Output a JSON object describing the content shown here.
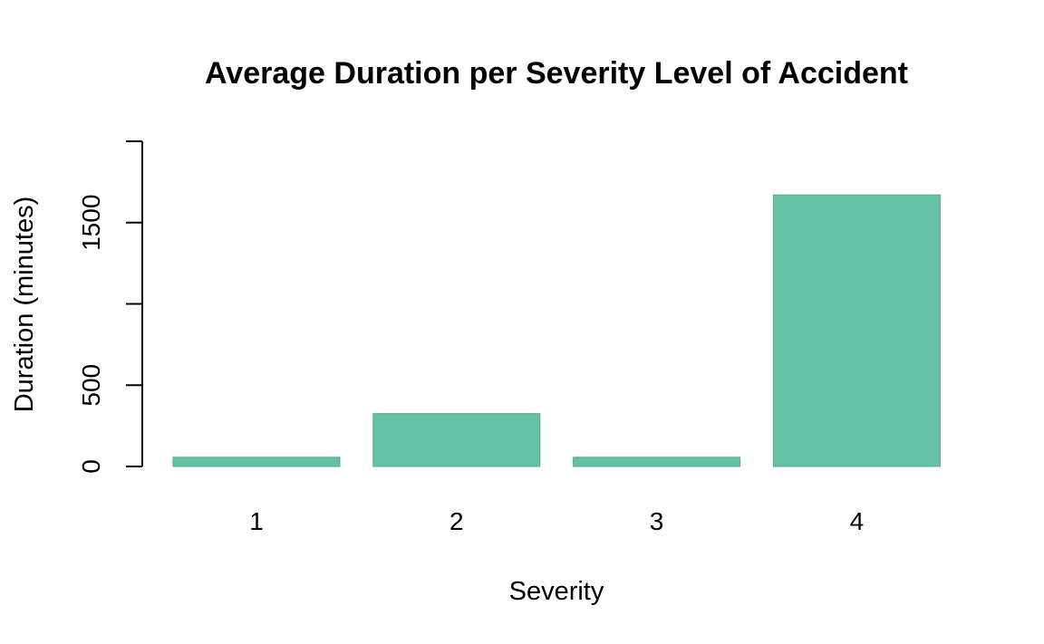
{
  "chart_data": {
    "type": "bar",
    "title": "Average Duration per Severity Level of Accident",
    "xlabel": "Severity",
    "ylabel": "Duration (minutes)",
    "categories": [
      "1",
      "2",
      "3",
      "4"
    ],
    "values": [
      57,
      325,
      57,
      1670
    ],
    "ylim": [
      0,
      2000
    ],
    "yticks": [
      0,
      500,
      1000,
      1500,
      2000
    ],
    "ytick_labels": [
      "0",
      "500",
      "",
      "1500",
      ""
    ],
    "grid": false,
    "bar_color": "#66c2a5"
  }
}
